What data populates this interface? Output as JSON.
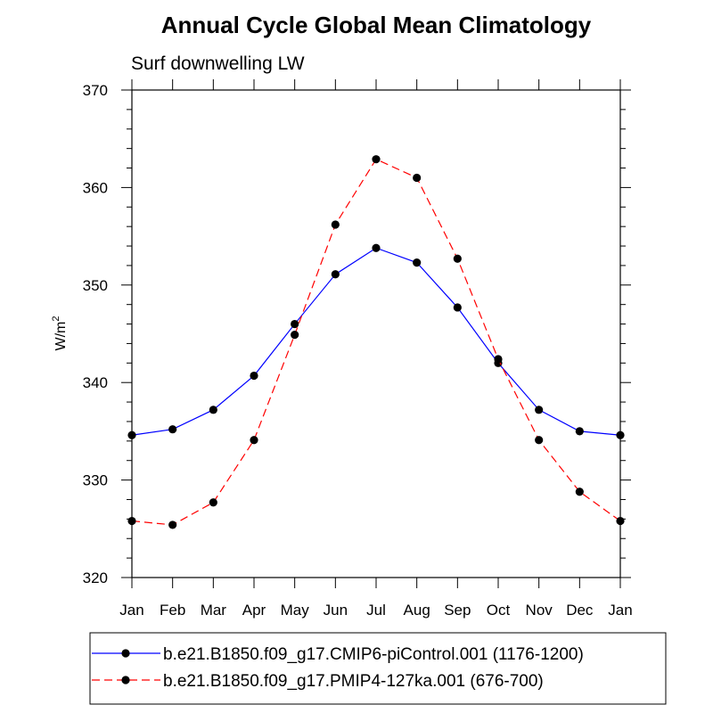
{
  "chart_data": {
    "type": "line",
    "title": "Annual Cycle Global Mean Climatology",
    "subtitle": "Surf downwelling LW",
    "ylabel_main": "W/m",
    "ylabel_sup": "2",
    "xlabel": "",
    "categories": [
      "Jan",
      "Feb",
      "Mar",
      "Apr",
      "May",
      "Jun",
      "Jul",
      "Aug",
      "Sep",
      "Oct",
      "Nov",
      "Dec",
      "Jan"
    ],
    "ylim": [
      320,
      370
    ],
    "yticks": [
      320,
      330,
      340,
      350,
      360,
      370
    ],
    "ytick_labels": [
      "320",
      "330",
      "340",
      "350",
      "360",
      "370"
    ],
    "grid": false,
    "legend_position": "bottom",
    "series": [
      {
        "name": "b.e21.B1850.f09_g17.CMIP6-piControl.001 (1176-1200)",
        "color": "#0000ff",
        "dash": "solid",
        "values": [
          334.6,
          335.2,
          337.2,
          340.7,
          346.0,
          351.1,
          353.8,
          352.3,
          347.7,
          342.0,
          337.2,
          335.0,
          334.6
        ]
      },
      {
        "name": "b.e21.B1850.f09_g17.PMIP4-127ka.001 (676-700)",
        "color": "#ff0000",
        "dash": "dashed",
        "values": [
          325.8,
          325.4,
          327.7,
          334.1,
          344.9,
          356.2,
          362.9,
          361.0,
          352.7,
          342.4,
          334.1,
          328.8,
          325.8
        ]
      }
    ]
  }
}
